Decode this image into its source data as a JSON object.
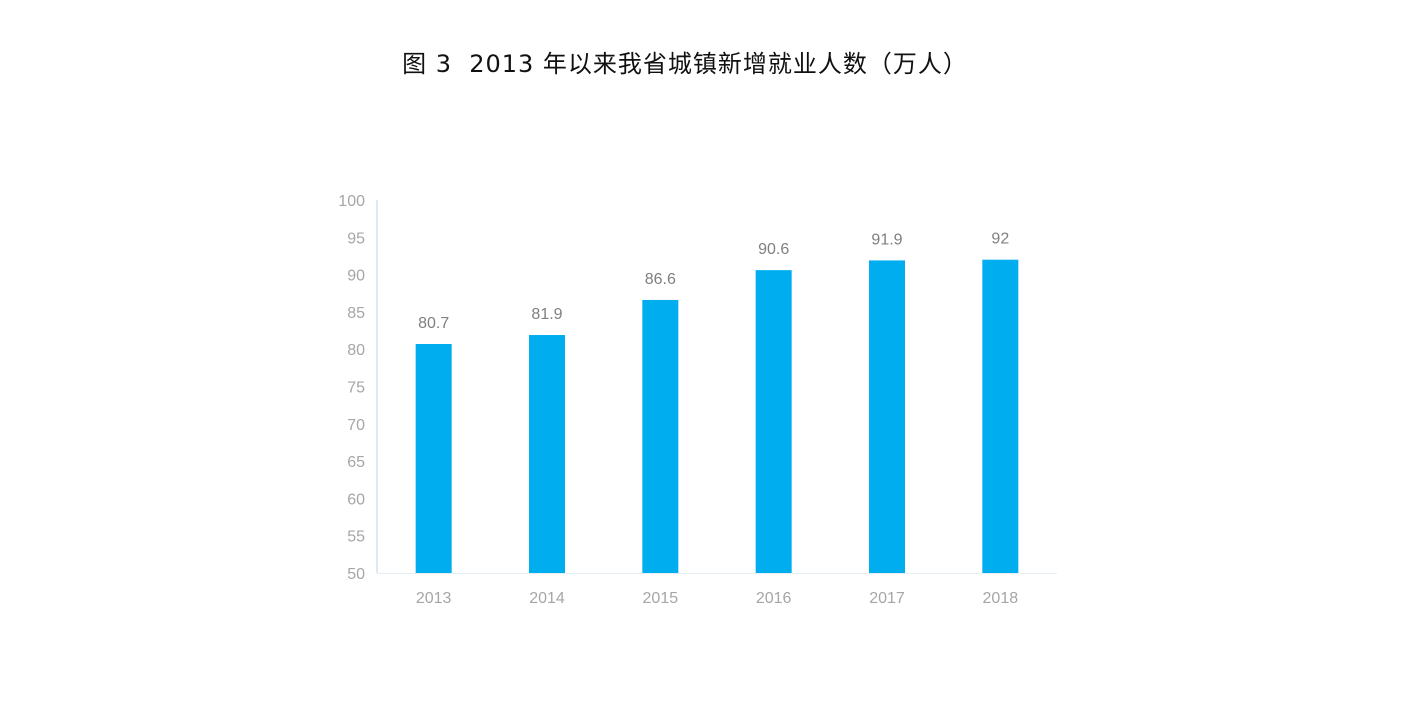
{
  "chart_data": {
    "type": "bar",
    "title": "图 3  2013 年以来我省城镇新增就业人数（万人）",
    "xlabel": "",
    "ylabel": "",
    "categories": [
      "2013",
      "2014",
      "2015",
      "2016",
      "2017",
      "2018"
    ],
    "values": [
      80.7,
      81.9,
      86.6,
      90.6,
      91.9,
      92
    ],
    "data_labels": [
      "80.7",
      "81.9",
      "86.6",
      "90.6",
      "91.9",
      "92"
    ],
    "ylim": [
      50,
      100
    ],
    "yticks": [
      50,
      55,
      60,
      65,
      70,
      75,
      80,
      85,
      90,
      95,
      100
    ],
    "grid": false,
    "legend": "none",
    "bar_color": "#00aeef",
    "axis_color": "#bfd7ea"
  }
}
